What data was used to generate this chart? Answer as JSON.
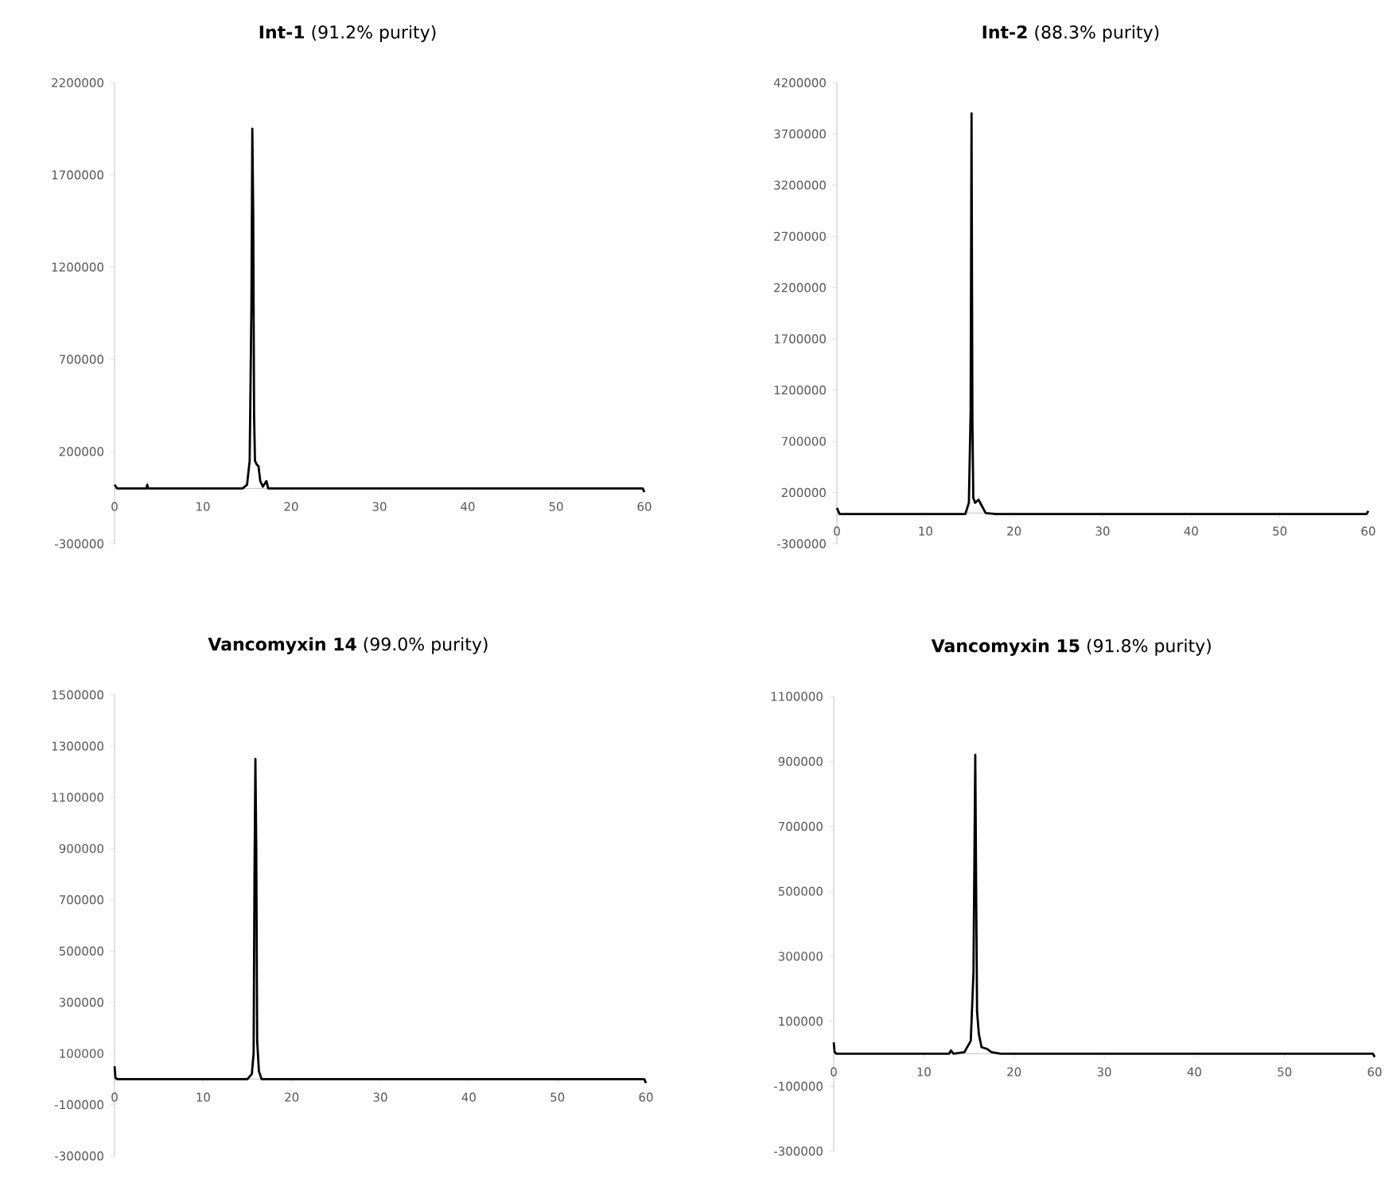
{
  "chart_data": [
    {
      "type": "line",
      "title": "**Int-1** (91.2% purity)",
      "color": "#000000",
      "xlim": [
        0,
        60
      ],
      "ylim": [
        -300000,
        2200000
      ],
      "xticks": [
        0,
        10,
        20,
        30,
        40,
        50,
        60
      ],
      "yticks": [
        -300000,
        200000,
        700000,
        1200000,
        1700000,
        2200000
      ],
      "x": [
        0,
        0.3,
        3.6,
        3.7,
        3.8,
        8,
        14.5,
        15.0,
        15.3,
        15.5,
        15.6,
        15.7,
        15.8,
        15.9,
        16.1,
        16.3,
        16.5,
        16.8,
        17.2,
        17.4,
        18,
        30,
        59.8,
        60
      ],
      "values": [
        20000,
        0,
        0,
        20000,
        0,
        0,
        0,
        20000,
        150000,
        1000000,
        1950000,
        1500000,
        400000,
        150000,
        130000,
        120000,
        40000,
        10000,
        40000,
        0,
        0,
        0,
        0,
        -20000
      ]
    },
    {
      "type": "line",
      "title": "**Int-2** (88.3% purity)",
      "color": "#000000",
      "xlim": [
        0,
        60
      ],
      "ylim": [
        -300000,
        4200000
      ],
      "xticks": [
        0,
        10,
        20,
        30,
        40,
        50,
        60
      ],
      "yticks": [
        -300000,
        200000,
        700000,
        1200000,
        1700000,
        2200000,
        2700000,
        3200000,
        3700000,
        4200000
      ],
      "x": [
        0,
        0.3,
        5,
        10,
        14.5,
        14.9,
        15.1,
        15.2,
        15.3,
        15.4,
        15.6,
        16,
        16.3,
        16.8,
        18,
        21,
        30,
        59.8,
        60
      ],
      "values": [
        50000,
        -10000,
        -10000,
        -10000,
        -10000,
        100000,
        1000000,
        3900000,
        900000,
        150000,
        100000,
        130000,
        80000,
        0,
        -10000,
        -10000,
        -10000,
        -10000,
        20000
      ]
    },
    {
      "type": "line",
      "title": "**Vancomyxin 14** (99.0% purity)",
      "color": "#000000",
      "xlim": [
        0,
        60
      ],
      "ylim": [
        -300000,
        1500000
      ],
      "xticks": [
        0,
        10,
        20,
        30,
        40,
        50,
        60
      ],
      "yticks": [
        -300000,
        -100000,
        100000,
        300000,
        500000,
        700000,
        900000,
        1100000,
        1300000,
        1500000
      ],
      "x": [
        0,
        0.1,
        0.3,
        10,
        15,
        15.5,
        15.7,
        15.8,
        15.9,
        16.0,
        16.1,
        16.3,
        16.6,
        20,
        30,
        59.8,
        60
      ],
      "values": [
        50000,
        5000,
        0,
        0,
        0,
        20000,
        100000,
        800000,
        1250000,
        900000,
        150000,
        30000,
        0,
        0,
        0,
        0,
        -15000
      ]
    },
    {
      "type": "line",
      "title": "**Vancomyxin 15** (91.8% purity)",
      "color": "#000000",
      "xlim": [
        0,
        60
      ],
      "ylim": [
        -300000,
        1100000
      ],
      "xticks": [
        0,
        10,
        20,
        30,
        40,
        50,
        60
      ],
      "yticks": [
        -300000,
        -100000,
        100000,
        300000,
        500000,
        700000,
        900000,
        1100000
      ],
      "x": [
        0,
        0.1,
        0.3,
        10,
        12.8,
        13,
        13.3,
        14.5,
        15.2,
        15.5,
        15.7,
        15.8,
        15.9,
        16.1,
        16.4,
        17,
        17.5,
        18.5,
        30,
        59.8,
        60
      ],
      "values": [
        35000,
        5000,
        0,
        0,
        0,
        10000,
        0,
        5000,
        40000,
        250000,
        920000,
        500000,
        130000,
        60000,
        20000,
        15000,
        5000,
        0,
        0,
        0,
        -10000
      ]
    }
  ]
}
